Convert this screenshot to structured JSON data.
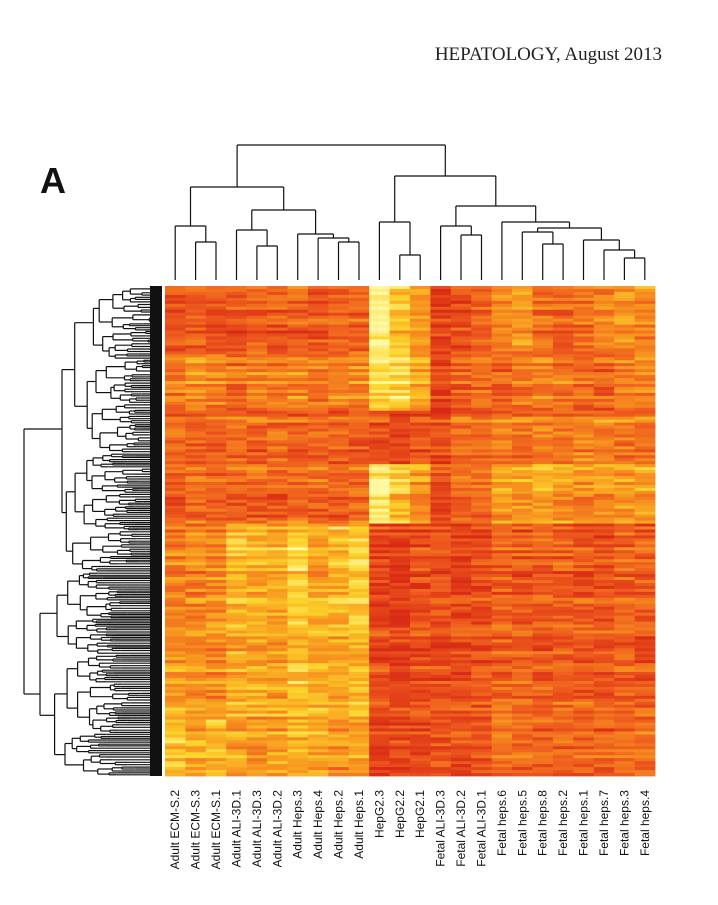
{
  "page": {
    "journal_header": "HEPATOLOGY, August 2013",
    "panel_label": "A"
  },
  "chart_data": {
    "type": "heatmap",
    "title": "",
    "xlabel": "",
    "ylabel": "",
    "column_dendrogram": true,
    "row_dendrogram": true,
    "colormap": [
      "#d82a14",
      "#ee5a1e",
      "#f7931f",
      "#fdd42b",
      "#fff9a6"
    ],
    "columns": [
      "Adult ECM-S.2",
      "Adult ECM-S.3",
      "Adult ECM-S.1",
      "Adult ALI-3D.1",
      "Adult ALI-3D.3",
      "Adult ALI-3D.2",
      "Adult Heps.3",
      "Adult Heps.4",
      "Adult Heps.2",
      "Adult Heps.1",
      "HepG2.3",
      "HepG2.2",
      "HepG2.1",
      "Fetal ALI-3D.3",
      "Fetal ALI-3D.2",
      "Fetal ALI-3D.1",
      "Fetal heps.6",
      "Fetal heps.5",
      "Fetal heps.8",
      "Fetal heps.2",
      "Fetal heps.1",
      "Fetal heps.7",
      "Fetal heps.3",
      "Fetal heps.4"
    ],
    "row_blocks": [
      {
        "rows": 22,
        "values": [
          0.22,
          0.28,
          0.25,
          0.22,
          0.3,
          0.25,
          0.28,
          0.25,
          0.3,
          0.28,
          0.95,
          0.7,
          0.5,
          0.12,
          0.22,
          0.25,
          0.45,
          0.55,
          0.35,
          0.3,
          0.35,
          0.4,
          0.5,
          0.45
        ]
      },
      {
        "rows": 20,
        "values": [
          0.4,
          0.45,
          0.42,
          0.35,
          0.4,
          0.38,
          0.42,
          0.35,
          0.4,
          0.42,
          0.8,
          0.75,
          0.6,
          0.12,
          0.28,
          0.32,
          0.3,
          0.35,
          0.4,
          0.35,
          0.32,
          0.3,
          0.4,
          0.45
        ]
      },
      {
        "rows": 18,
        "values": [
          0.32,
          0.28,
          0.3,
          0.35,
          0.3,
          0.32,
          0.28,
          0.32,
          0.3,
          0.28,
          0.2,
          0.18,
          0.25,
          0.18,
          0.35,
          0.3,
          0.4,
          0.38,
          0.42,
          0.4,
          0.45,
          0.42,
          0.4,
          0.42
        ]
      },
      {
        "rows": 20,
        "values": [
          0.3,
          0.35,
          0.32,
          0.28,
          0.3,
          0.28,
          0.35,
          0.32,
          0.3,
          0.35,
          0.92,
          0.7,
          0.5,
          0.22,
          0.32,
          0.35,
          0.55,
          0.55,
          0.6,
          0.52,
          0.5,
          0.5,
          0.55,
          0.58
        ]
      },
      {
        "rows": 35,
        "values": [
          0.42,
          0.45,
          0.48,
          0.65,
          0.6,
          0.62,
          0.78,
          0.6,
          0.65,
          0.75,
          0.15,
          0.12,
          0.2,
          0.22,
          0.15,
          0.2,
          0.28,
          0.25,
          0.3,
          0.28,
          0.25,
          0.22,
          0.3,
          0.28
        ]
      },
      {
        "rows": 30,
        "values": [
          0.55,
          0.5,
          0.48,
          0.58,
          0.6,
          0.55,
          0.68,
          0.62,
          0.6,
          0.65,
          0.18,
          0.15,
          0.2,
          0.18,
          0.2,
          0.22,
          0.3,
          0.28,
          0.25,
          0.3,
          0.28,
          0.25,
          0.3,
          0.25
        ]
      },
      {
        "rows": 20,
        "values": [
          0.7,
          0.6,
          0.65,
          0.55,
          0.5,
          0.55,
          0.6,
          0.55,
          0.5,
          0.55,
          0.12,
          0.15,
          0.15,
          0.2,
          0.18,
          0.22,
          0.35,
          0.3,
          0.28,
          0.32,
          0.3,
          0.28,
          0.3,
          0.32
        ]
      }
    ]
  }
}
